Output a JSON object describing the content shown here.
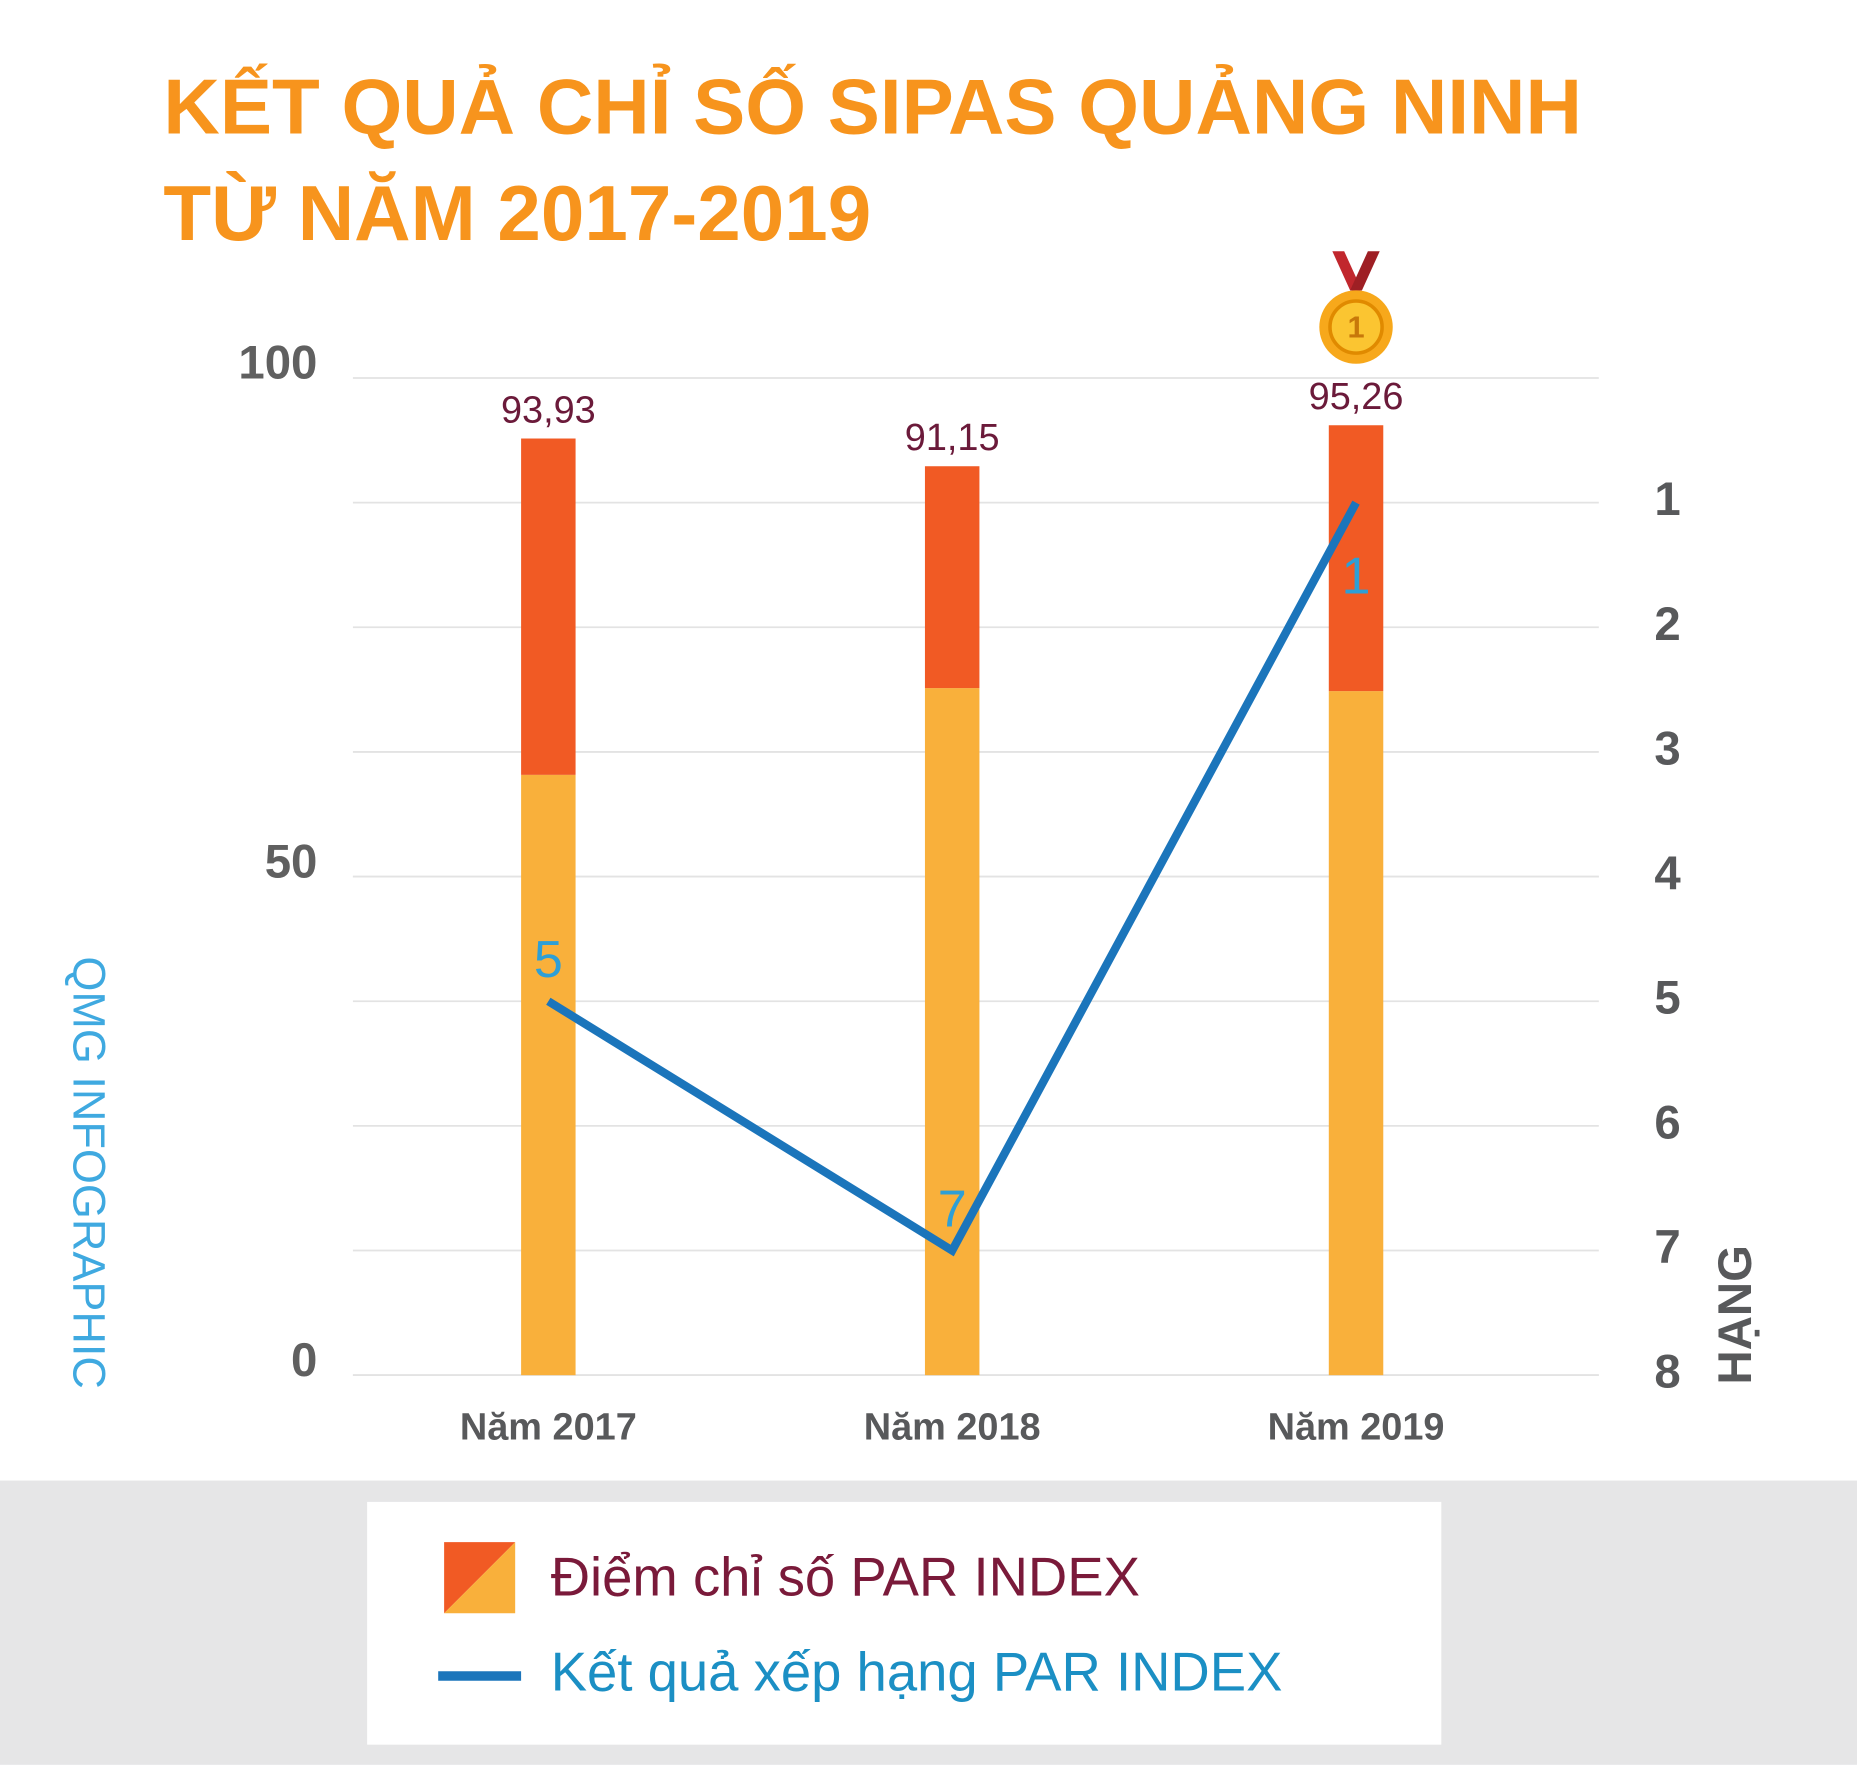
{
  "chart_data": {
    "type": "bar_line",
    "title": [
      "KẾT QUẢ CHỈ SỐ SIPAS QUẢNG NINH",
      "TỪ NĂM 2017-2019"
    ],
    "watermark": "QMG INFOGRAPHIC",
    "categories": [
      "Năm 2017",
      "Năm 2018",
      "Năm 2019"
    ],
    "series": [
      {
        "name": "Điểm chỉ số PAR INDEX",
        "type": "bar",
        "color": "#f15a24",
        "base_color": "#f9b03b",
        "base_values": [
          60.2,
          68.9,
          68.6
        ],
        "values": [
          93.93,
          91.15,
          95.26
        ],
        "value_labels": [
          "93,93",
          "91,15",
          "95,26"
        ]
      },
      {
        "name": "Kết quả xếp hạng PAR INDEX",
        "type": "line",
        "axis": "y2",
        "color": "#1b75bb",
        "values": [
          5,
          7,
          1
        ]
      }
    ],
    "ylim": [
      0,
      100
    ],
    "yticks": [
      0,
      50,
      100
    ],
    "y2label": "HẠNG",
    "y2lim": [
      8,
      0
    ],
    "y2ticks": [
      1,
      2,
      3,
      4,
      5,
      6,
      7,
      8
    ],
    "grid": true
  }
}
